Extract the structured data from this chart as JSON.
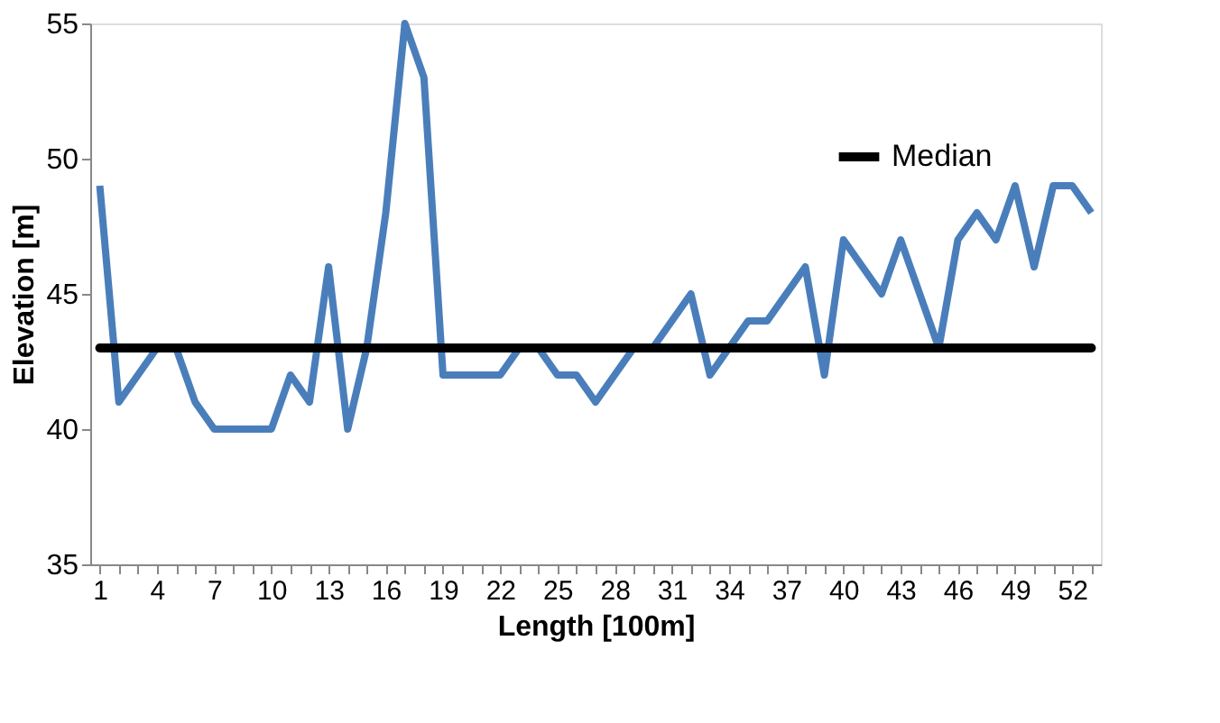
{
  "chart_data": {
    "type": "line",
    "xlabel": "Length [100m]",
    "ylabel": "Elevation [m]",
    "categories": [
      "1",
      null,
      null,
      "4",
      null,
      null,
      "7",
      null,
      null,
      "10",
      null,
      null,
      "13",
      null,
      null,
      "16",
      null,
      null,
      "19",
      null,
      null,
      "22",
      null,
      null,
      "25",
      null,
      null,
      "28",
      null,
      null,
      "31",
      null,
      null,
      "34",
      null,
      null,
      "37",
      null,
      null,
      "40",
      null,
      null,
      "43",
      null,
      null,
      "46",
      null,
      null,
      "49",
      null,
      null,
      "52",
      null
    ],
    "series": [
      {
        "color": "#4a7ebb",
        "values": [
          49,
          41,
          42,
          43,
          43,
          41,
          40,
          40,
          40,
          40,
          42,
          41,
          46,
          40,
          43,
          48,
          55,
          53,
          42,
          42,
          42,
          42,
          43,
          43,
          42,
          42,
          41,
          42,
          43,
          43,
          44,
          45,
          42,
          43,
          44,
          44,
          45,
          46,
          42,
          47,
          46,
          45,
          47,
          45,
          43,
          47,
          48,
          47,
          49,
          46,
          49,
          49,
          48
        ]
      }
    ],
    "ref_lines": [
      {
        "axis": "y",
        "value": 43,
        "label": "Median",
        "color": "#000000"
      }
    ],
    "ylim": [
      35,
      55
    ],
    "yticks": [
      35,
      40,
      45,
      50,
      55
    ],
    "grid": false,
    "legend": "top right",
    "line_style": "solid",
    "marker": "none"
  }
}
